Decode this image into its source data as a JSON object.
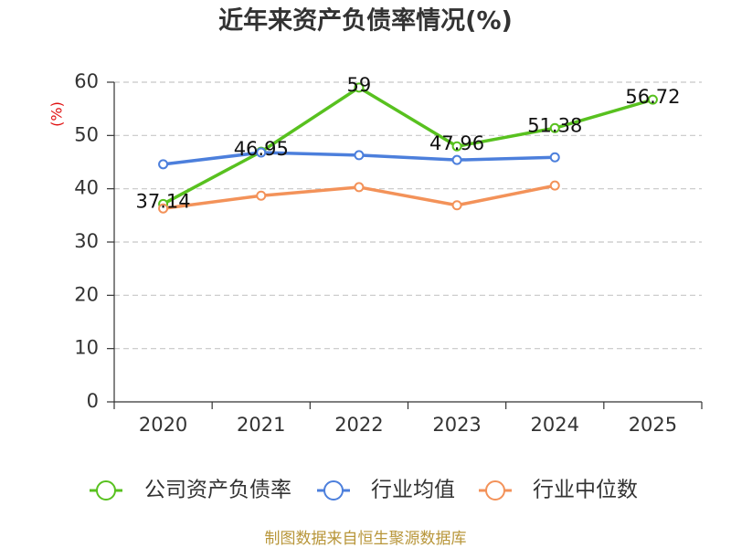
{
  "chart_data": {
    "type": "line",
    "title": "近年来资产负债率情况(%)",
    "xlabel": "",
    "ylabel": "(%)",
    "categories": [
      "2020",
      "2021",
      "2022",
      "2023",
      "2024",
      "2025"
    ],
    "ylim": [
      0,
      60
    ],
    "yticks": [
      0,
      10,
      20,
      30,
      40,
      50,
      60
    ],
    "grid": true,
    "legend": "bottom",
    "series": [
      {
        "name": "公司资产负债率",
        "color": "#58c11f",
        "show_labels": true,
        "values": [
          37.14,
          46.95,
          59,
          47.96,
          51.38,
          56.72
        ]
      },
      {
        "name": "行业均值",
        "color": "#4c7fdc",
        "values": [
          44.6,
          46.8,
          46.3,
          45.4,
          45.9,
          null
        ]
      },
      {
        "name": "行业中位数",
        "color": "#f39259",
        "values": [
          36.3,
          38.7,
          40.3,
          36.9,
          40.6,
          null
        ]
      }
    ]
  },
  "footer": {
    "source": "制图数据来自恒生聚源数据库"
  }
}
